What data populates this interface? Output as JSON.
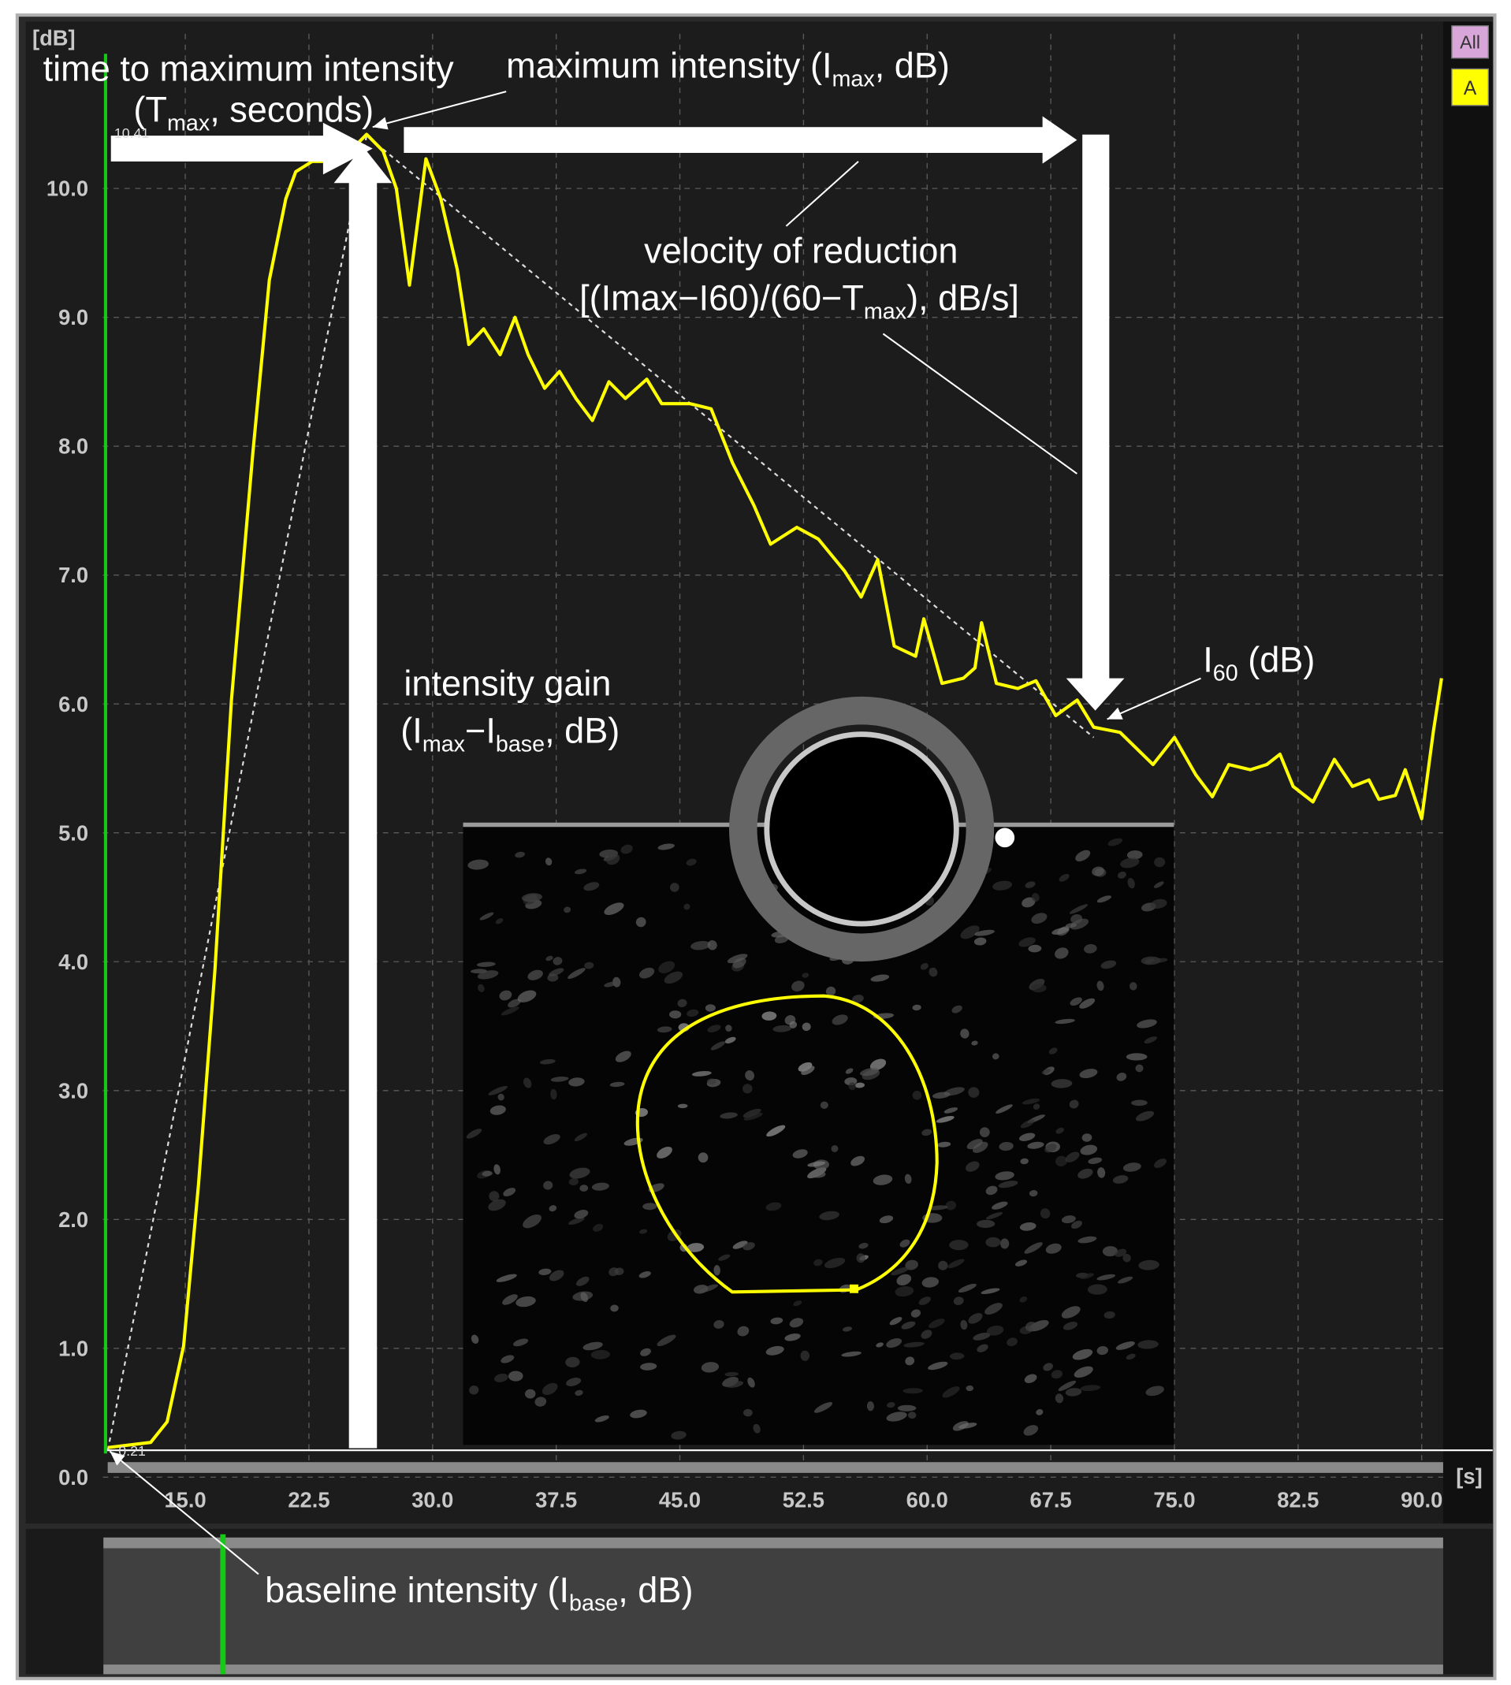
{
  "chart_data": {
    "type": "line",
    "y_unit": "[dB]",
    "x_unit": "[s]",
    "buttons": [
      "All",
      "A"
    ],
    "peak_label": "10.41",
    "base_label": "0.21",
    "xlim": [
      10,
      91.3
    ],
    "ylim": [
      0,
      11.2
    ],
    "xticks": [
      {
        "value": 15,
        "label": "15.0"
      },
      {
        "value": 22.5,
        "label": "22.5"
      },
      {
        "value": 30,
        "label": "30.0"
      },
      {
        "value": 37.5,
        "label": "37.5"
      },
      {
        "value": 45,
        "label": "45.0"
      },
      {
        "value": 52.5,
        "label": "52.5"
      },
      {
        "value": 60,
        "label": "60.0"
      },
      {
        "value": 67.5,
        "label": "67.5"
      },
      {
        "value": 75,
        "label": "75.0"
      },
      {
        "value": 82.5,
        "label": "82.5"
      },
      {
        "value": 90,
        "label": "90.0"
      }
    ],
    "yticks": [
      {
        "value": 0,
        "label": "0.0"
      },
      {
        "value": 1,
        "label": "1.0"
      },
      {
        "value": 2,
        "label": "2.0"
      },
      {
        "value": 3,
        "label": "3.0"
      },
      {
        "value": 4,
        "label": "4.0"
      },
      {
        "value": 5,
        "label": "5.0"
      },
      {
        "value": 6,
        "label": "6.0"
      },
      {
        "value": 7,
        "label": "7.0"
      },
      {
        "value": 8,
        "label": "8.0"
      },
      {
        "value": 9,
        "label": "9.0"
      },
      {
        "value": 10,
        "label": "10.0"
      }
    ],
    "grid": true,
    "series": [
      {
        "color": "#ffff00",
        "x": [
          10.3,
          12.9,
          13.9,
          14.9,
          15.8,
          16.8,
          17.8,
          19.1,
          20.1,
          21.1,
          21.7,
          22.7,
          23.4,
          24.7,
          26.0,
          27.0,
          27.8,
          28.6,
          29.6,
          30.5,
          31.5,
          32.2,
          33.1,
          34.1,
          35.0,
          35.8,
          36.8,
          37.7,
          38.7,
          39.7,
          40.7,
          41.7,
          43.0,
          43.9,
          45.6,
          46.9,
          48.2,
          49.5,
          50.5,
          52.1,
          53.4,
          55.0,
          56.0,
          57.0,
          58.0,
          59.3,
          59.8,
          60.9,
          62.2,
          62.9,
          63.3,
          64.2,
          65.5,
          66.6,
          67.8,
          69.1,
          70.1,
          71.7,
          73.7,
          75.0,
          76.3,
          77.3,
          78.3,
          79.6,
          80.6,
          81.4,
          82.2,
          83.4,
          84.7,
          85.8,
          86.8,
          87.4,
          88.4,
          89.0,
          90.0,
          90.7,
          91.2
        ],
        "values": [
          0.23,
          0.27,
          0.43,
          1.02,
          2.27,
          3.94,
          6.03,
          7.95,
          9.29,
          9.92,
          10.13,
          10.21,
          10.21,
          10.25,
          10.42,
          10.29,
          10.0,
          9.25,
          10.23,
          9.92,
          9.37,
          8.79,
          8.91,
          8.71,
          9.0,
          8.71,
          8.45,
          8.58,
          8.37,
          8.2,
          8.5,
          8.37,
          8.52,
          8.33,
          8.33,
          8.29,
          7.87,
          7.54,
          7.24,
          7.37,
          7.28,
          7.03,
          6.83,
          7.12,
          6.45,
          6.37,
          6.66,
          6.16,
          6.2,
          6.28,
          6.63,
          6.16,
          6.12,
          6.18,
          5.91,
          6.03,
          5.82,
          5.78,
          5.53,
          5.74,
          5.45,
          5.28,
          5.53,
          5.49,
          5.53,
          5.61,
          5.36,
          5.24,
          5.57,
          5.36,
          5.41,
          5.26,
          5.29,
          5.49,
          5.11,
          5.78,
          6.2
        ]
      }
    ],
    "fit": {
      "color": "#dddddd",
      "x": [
        10.3,
        26.0,
        70.1
      ],
      "values": [
        0.21,
        10.41,
        5.74
      ]
    },
    "annotations": [
      [
        "time to maximum intensity",
        "(T",
        "max",
        ", seconds)"
      ],
      [
        "maximum intensity (I",
        "max",
        ", dB)"
      ],
      [
        "velocity of reduction",
        "[(Imax−I60)/(60−T",
        "max",
        "), dB/s]"
      ],
      [
        "intensity gain",
        "(I",
        "max",
        "−I",
        "base",
        ", dB)"
      ],
      [
        "I",
        "60",
        " (dB)"
      ],
      [
        "baseline intensity (I",
        "base",
        ", dB)"
      ]
    ]
  }
}
